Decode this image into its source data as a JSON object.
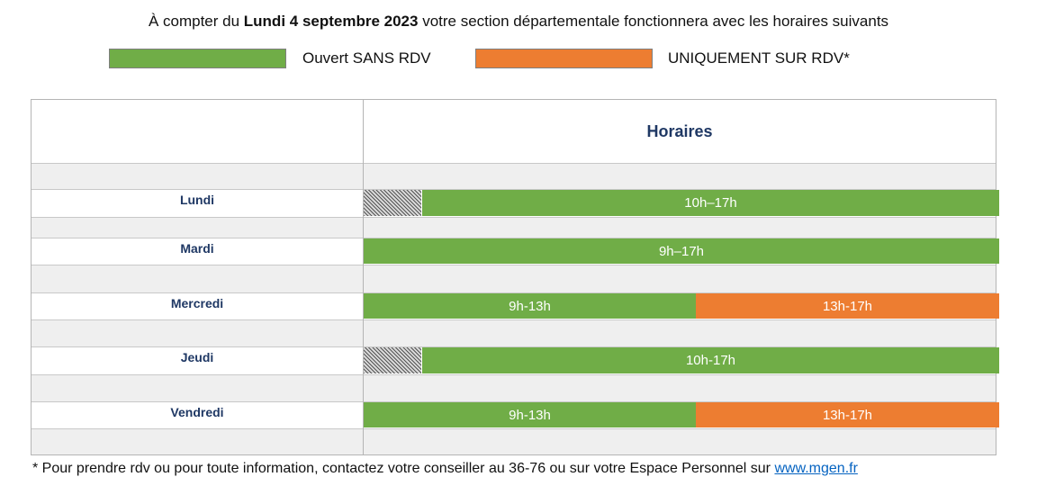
{
  "headline": {
    "prefix": "À compter du ",
    "date_bold": "Lundi 4 septembre 2023",
    "suffix": " votre section départementale fonctionnera avec les horaires suivants"
  },
  "legend": {
    "open_label": "Ouvert SANS RDV",
    "open_color": "#70ad47",
    "appointment_label": "UNIQUEMENT SUR RDV*",
    "appointment_color": "#ed7d31"
  },
  "table": {
    "header": "Horaires",
    "rows": [
      {
        "day": "Lundi",
        "slots": [
          {
            "label": "10h–17h",
            "type": "open"
          }
        ],
        "closed_before": true
      },
      {
        "day": "Mardi",
        "slots": [
          {
            "label": "9h–17h",
            "type": "open"
          }
        ],
        "closed_before": false
      },
      {
        "day": "Mercredi",
        "slots": [
          {
            "label": "9h-13h",
            "type": "open"
          },
          {
            "label": "13h-17h",
            "type": "appointment"
          }
        ],
        "closed_before": false
      },
      {
        "day": "Jeudi",
        "slots": [
          {
            "label": "10h-17h",
            "type": "open"
          }
        ],
        "closed_before": true
      },
      {
        "day": "Vendredi",
        "slots": [
          {
            "label": "9h-13h",
            "type": "open"
          },
          {
            "label": "13h-17h",
            "type": "appointment"
          }
        ],
        "closed_before": false
      }
    ]
  },
  "footnote": {
    "text": "* Pour prendre rdv ou pour toute information, contactez votre conseiller au 36-76 ou sur votre Espace Personnel sur ",
    "link_text": "www.mgen.fr"
  }
}
